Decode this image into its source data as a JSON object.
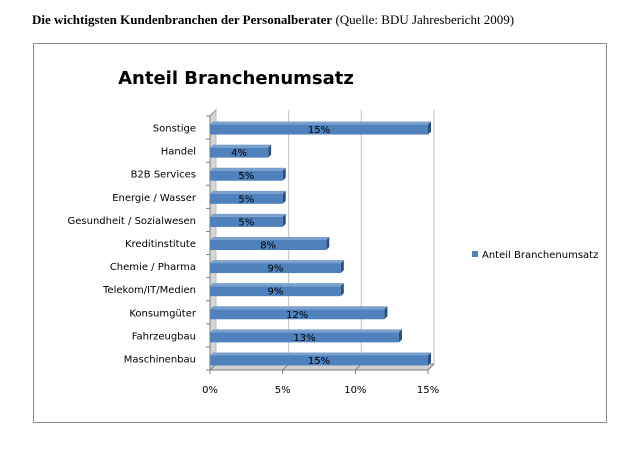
{
  "caption": {
    "bold": "Die wichtigsten Kundenbranchen der Personalberater",
    "normal": " (Quelle: BDU Jahresbericht 2009)"
  },
  "colors": {
    "bar": "#4f81bd",
    "bar_dark": "#2c4d75",
    "bar_light": "#7aa0cd",
    "wall": "#e8e8e8",
    "gridline": "#bfbfbf"
  },
  "chart_data": {
    "type": "bar",
    "orientation": "horizontal",
    "title": "Anteil Branchenumsatz",
    "categories": [
      "Sonstige",
      "Handel",
      "B2B Services",
      "Energie / Wasser",
      "Gesundheit / Sozialwesen",
      "Kreditinstitute",
      "Chemie / Pharma",
      "Telekom/IT/Medien",
      "Konsumgüter",
      "Fahrzeugbau",
      "Maschinenbau"
    ],
    "series": [
      {
        "name": "Anteil Branchenumsatz",
        "values": [
          15,
          4,
          5,
          5,
          5,
          8,
          9,
          9,
          12,
          13,
          15
        ],
        "data_labels": [
          "15%",
          "4%",
          "5%",
          "5%",
          "5%",
          "8%",
          "9%",
          "9%",
          "12%",
          "13%",
          "15%"
        ]
      }
    ],
    "xlim": [
      0,
      15
    ],
    "xticks": [
      0,
      5,
      10,
      15
    ],
    "xtick_labels": [
      "0%",
      "5%",
      "10%",
      "15%"
    ],
    "grid": true,
    "legend": "right"
  }
}
